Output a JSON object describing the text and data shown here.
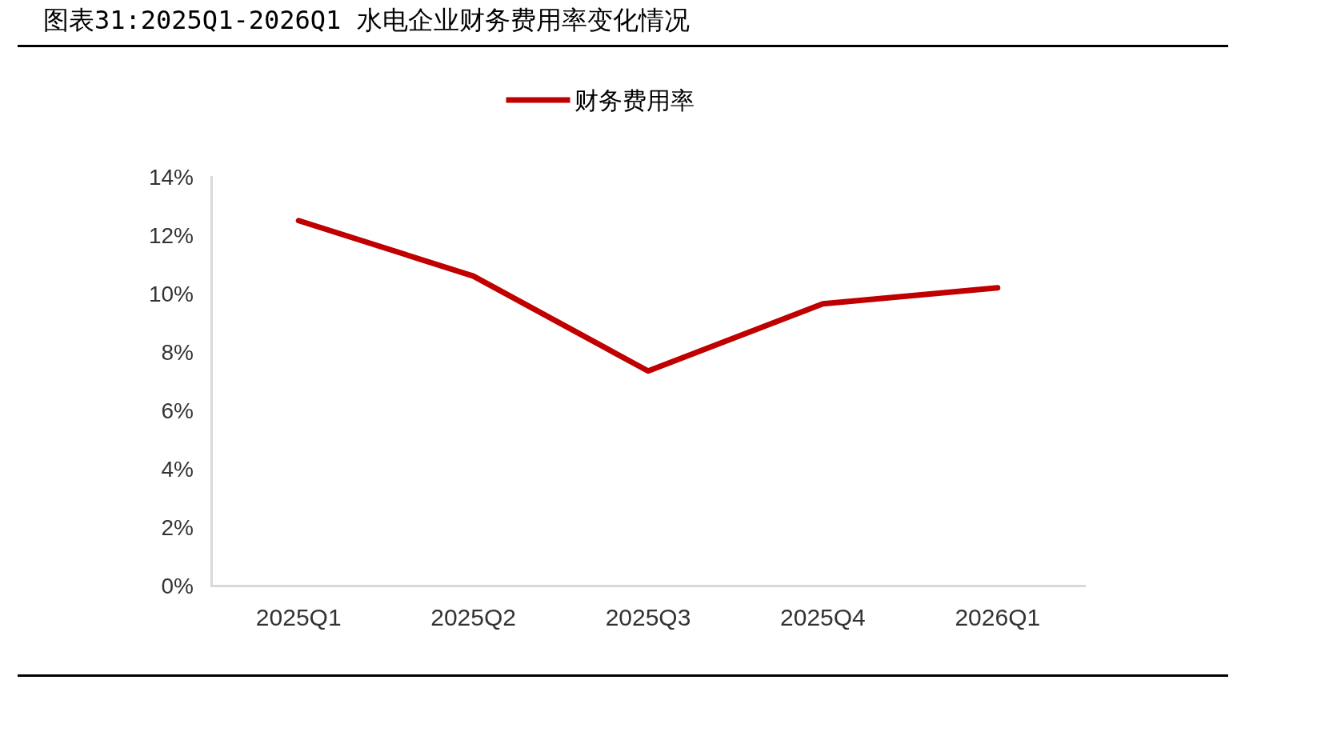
{
  "chart_data": {
    "type": "line",
    "title": "图表31:2025Q1-2026Q1 水电企业财务费用率变化情况",
    "categories": [
      "2025Q1",
      "2025Q2",
      "2025Q3",
      "2025Q4",
      "2026Q1"
    ],
    "series": [
      {
        "name": "财务费用率",
        "color": "#c00000",
        "values": [
          12.5,
          10.6,
          7.35,
          9.65,
          10.2
        ]
      }
    ],
    "ylim": [
      0,
      14
    ],
    "yticks": [
      {
        "value": 0,
        "label": "0%"
      },
      {
        "value": 2,
        "label": "2%"
      },
      {
        "value": 4,
        "label": "4%"
      },
      {
        "value": 6,
        "label": "6%"
      },
      {
        "value": 8,
        "label": "8%"
      },
      {
        "value": 10,
        "label": "10%"
      },
      {
        "value": 12,
        "label": "12%"
      },
      {
        "value": 14,
        "label": "14%"
      }
    ],
    "grid": false,
    "legend": "top",
    "marker": "none",
    "line_style": "solid"
  }
}
